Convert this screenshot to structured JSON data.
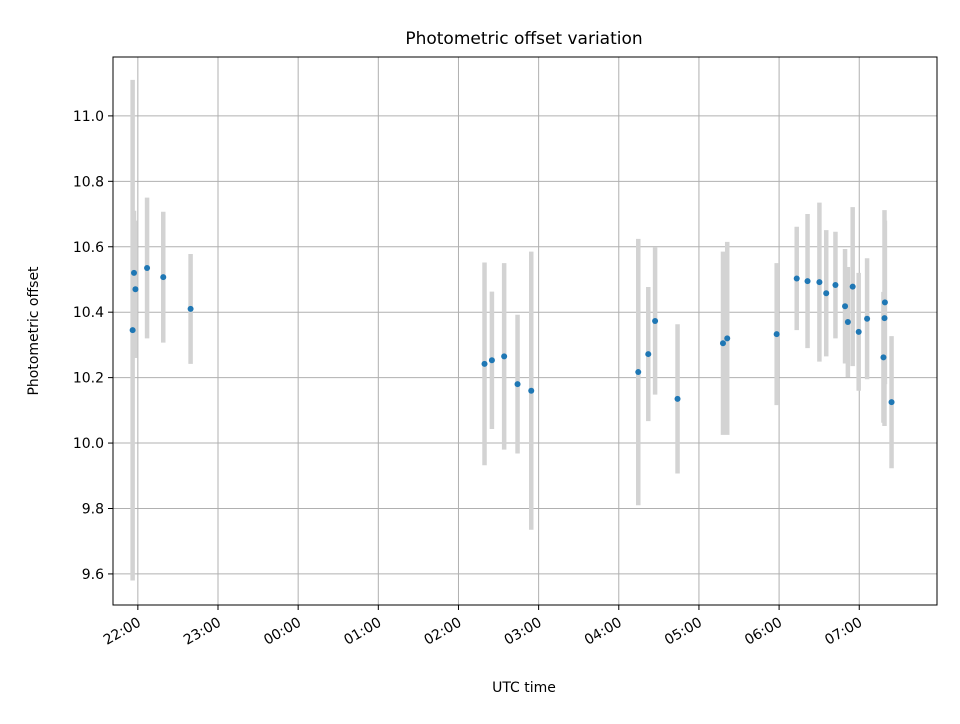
{
  "chart_data": {
    "type": "scatter",
    "title": "Photometric offset variation",
    "xlabel": "UTC time",
    "ylabel": "Photometric offset",
    "x_range": [
      21.69,
      31.97
    ],
    "ylim": [
      9.505,
      11.18
    ],
    "x_ticks": [
      {
        "t": 22,
        "label": "22:00"
      },
      {
        "t": 23,
        "label": "23:00"
      },
      {
        "t": 24,
        "label": "00:00"
      },
      {
        "t": 25,
        "label": "01:00"
      },
      {
        "t": 26,
        "label": "02:00"
      },
      {
        "t": 27,
        "label": "03:00"
      },
      {
        "t": 28,
        "label": "04:00"
      },
      {
        "t": 29,
        "label": "05:00"
      },
      {
        "t": 30,
        "label": "06:00"
      },
      {
        "t": 31,
        "label": "07:00"
      }
    ],
    "y_ticks": [
      {
        "v": 9.6,
        "label": "9.6"
      },
      {
        "v": 9.8,
        "label": "9.8"
      },
      {
        "v": 10.0,
        "label": "10.0"
      },
      {
        "v": 10.2,
        "label": "10.2"
      },
      {
        "v": 10.4,
        "label": "10.4"
      },
      {
        "v": 10.6,
        "label": "10.6"
      },
      {
        "v": 10.8,
        "label": "10.8"
      },
      {
        "v": 11.0,
        "label": "11.0"
      }
    ],
    "grid": true,
    "series": [
      {
        "x_unit": "hours UTC (values above 24 fall after midnight)",
        "marker_color": "#1f77b4",
        "errorbar_color": "#d3d3d3",
        "points": [
          {
            "x": 21.935,
            "y": 10.345,
            "err": 0.765
          },
          {
            "x": 21.952,
            "y": 10.52,
            "err": 0.19
          },
          {
            "x": 21.97,
            "y": 10.47,
            "err": 0.21
          },
          {
            "x": 22.115,
            "y": 10.535,
            "err": 0.215
          },
          {
            "x": 22.317,
            "y": 10.507,
            "err": 0.2
          },
          {
            "x": 22.658,
            "y": 10.41,
            "err": 0.168
          },
          {
            "x": 26.325,
            "y": 10.242,
            "err": 0.31
          },
          {
            "x": 26.417,
            "y": 10.253,
            "err": 0.21
          },
          {
            "x": 26.57,
            "y": 10.265,
            "err": 0.285
          },
          {
            "x": 26.737,
            "y": 10.18,
            "err": 0.212
          },
          {
            "x": 26.908,
            "y": 10.16,
            "err": 0.425
          },
          {
            "x": 28.243,
            "y": 10.217,
            "err": 0.407
          },
          {
            "x": 28.368,
            "y": 10.272,
            "err": 0.205
          },
          {
            "x": 28.453,
            "y": 10.373,
            "err": 0.225
          },
          {
            "x": 28.733,
            "y": 10.135,
            "err": 0.228
          },
          {
            "x": 29.3,
            "y": 10.305,
            "err": 0.28
          },
          {
            "x": 29.353,
            "y": 10.32,
            "err": 0.295
          },
          {
            "x": 29.97,
            "y": 10.333,
            "err": 0.217
          },
          {
            "x": 30.22,
            "y": 10.503,
            "err": 0.158
          },
          {
            "x": 30.355,
            "y": 10.495,
            "err": 0.205
          },
          {
            "x": 30.503,
            "y": 10.492,
            "err": 0.243
          },
          {
            "x": 30.588,
            "y": 10.458,
            "err": 0.193
          },
          {
            "x": 30.703,
            "y": 10.483,
            "err": 0.163
          },
          {
            "x": 30.823,
            "y": 10.418,
            "err": 0.175
          },
          {
            "x": 30.858,
            "y": 10.37,
            "err": 0.168
          },
          {
            "x": 30.918,
            "y": 10.478,
            "err": 0.243
          },
          {
            "x": 30.993,
            "y": 10.34,
            "err": 0.18
          },
          {
            "x": 31.098,
            "y": 10.38,
            "err": 0.185
          },
          {
            "x": 31.302,
            "y": 10.262,
            "err": 0.2
          },
          {
            "x": 31.315,
            "y": 10.382,
            "err": 0.33
          },
          {
            "x": 31.32,
            "y": 10.43,
            "err": 0.25
          },
          {
            "x": 31.403,
            "y": 10.125,
            "err": 0.202
          }
        ]
      }
    ]
  }
}
